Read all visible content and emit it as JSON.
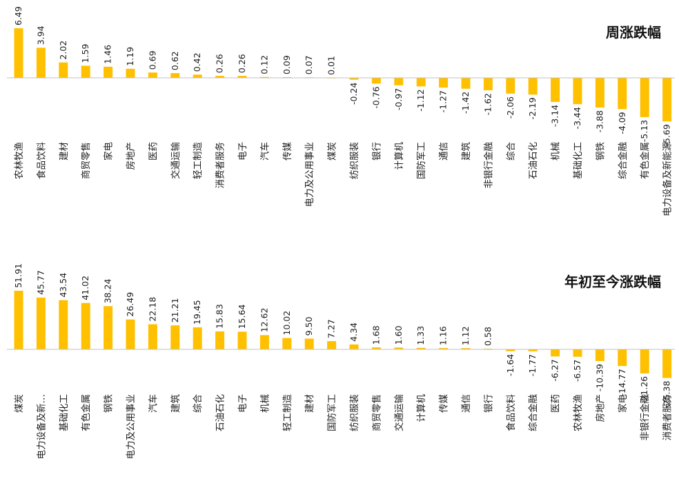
{
  "chart_data": [
    {
      "type": "bar",
      "title": "周涨跌幅",
      "bar_color": "#FFC000",
      "axis_color": "#BFBFBF",
      "categories": [
        "农林牧渔",
        "食品饮料",
        "建材",
        "商贸零售",
        "家电",
        "房地产",
        "医药",
        "交通运输",
        "轻工制造",
        "消费者服务",
        "电子",
        "汽车",
        "传媒",
        "电力及公用事业",
        "煤炭",
        "纺织服装",
        "银行",
        "计算机",
        "国防军工",
        "通信",
        "建筑",
        "非银行金融",
        "综合",
        "石油石化",
        "机械",
        "基础化工",
        "钢铁",
        "综合金融",
        "有色金属",
        "电力设备及新能源"
      ],
      "value_labels": [
        "6.49",
        "3.94",
        "2.02",
        "1.59",
        "1.46",
        "1.19",
        "0.69",
        "0.62",
        "0.42",
        "0.26",
        "0.26",
        "0.12",
        "0.09",
        "0.07",
        "0.01",
        "-0.24",
        "-0.76",
        "-0.97",
        "-1.12",
        "-1.27",
        "-1.42",
        "-1.62",
        "-2.06",
        "-2.19",
        "-3.14",
        "-3.44",
        "-3.88",
        "-4.09",
        "-5.13",
        "-5.69"
      ],
      "values": [
        6.49,
        3.94,
        2.02,
        1.59,
        1.46,
        1.19,
        0.69,
        0.62,
        0.42,
        0.26,
        0.26,
        0.12,
        0.09,
        0.07,
        0.01,
        -0.24,
        -0.76,
        -0.97,
        -1.12,
        -1.27,
        -1.42,
        -1.62,
        -2.06,
        -2.19,
        -3.14,
        -3.44,
        -3.88,
        -4.09,
        -5.13,
        -5.69
      ],
      "grid": false
    },
    {
      "type": "bar",
      "title": "年初至今涨跌幅",
      "bar_color": "#FFC000",
      "axis_color": "#BFBFBF",
      "categories": [
        "煤炭",
        "电力设备及新…",
        "基础化工",
        "有色金属",
        "钢铁",
        "电力及公用事业",
        "汽车",
        "建筑",
        "综合",
        "石油石化",
        "电子",
        "机械",
        "轻工制造",
        "建材",
        "国防军工",
        "纺织服装",
        "商贸零售",
        "交通运输",
        "计算机",
        "传媒",
        "通信",
        "银行",
        "食品饮料",
        "综合金融",
        "医药",
        "农林牧渔",
        "房地产",
        "家电",
        "非银行金融",
        "消费者服务"
      ],
      "value_labels": [
        "51.91",
        "45.77",
        "43.54",
        "41.02",
        "38.24",
        "26.49",
        "22.18",
        "21.21",
        "19.45",
        "15.83",
        "15.64",
        "12.62",
        "10.02",
        "9.50",
        "7.27",
        "4.34",
        "1.68",
        "1.60",
        "1.33",
        "1.16",
        "1.12",
        "0.58",
        "-1.64",
        "-1.77",
        "-6.27",
        "-6.57",
        "-10.39",
        "-14.77",
        "-21.26",
        "-25.38"
      ],
      "values": [
        51.91,
        45.77,
        43.54,
        41.02,
        38.24,
        26.49,
        22.18,
        21.21,
        19.45,
        15.83,
        15.64,
        12.62,
        10.02,
        9.5,
        7.27,
        4.34,
        1.68,
        1.6,
        1.33,
        1.16,
        1.12,
        0.58,
        -1.64,
        -1.77,
        -6.27,
        -6.57,
        -10.39,
        -14.77,
        -21.26,
        -25.38
      ],
      "grid": false
    }
  ]
}
